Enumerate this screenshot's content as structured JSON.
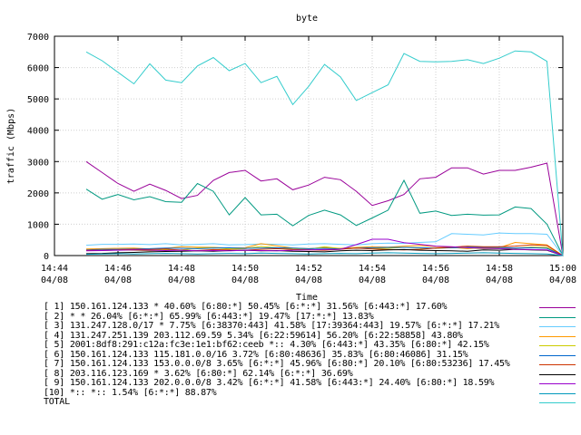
{
  "chart_data": {
    "type": "line",
    "title": "byte",
    "xlabel": "Time",
    "ylabel": "traffic (Mbps)",
    "ylim": [
      0,
      7000
    ],
    "yticks": [
      "0",
      "1000",
      "2000",
      "3000",
      "4000",
      "5000",
      "6000",
      "7000"
    ],
    "xlim": [
      "14:44",
      "15:00"
    ],
    "xticks": [
      {
        "time": "14:44",
        "date": "04/08"
      },
      {
        "time": "14:46",
        "date": "04/08"
      },
      {
        "time": "14:48",
        "date": "04/08"
      },
      {
        "time": "14:50",
        "date": "04/08"
      },
      {
        "time": "14:52",
        "date": "04/08"
      },
      {
        "time": "14:54",
        "date": "04/08"
      },
      {
        "time": "14:56",
        "date": "04/08"
      },
      {
        "time": "14:58",
        "date": "04/08"
      },
      {
        "time": "15:00",
        "date": "04/08"
      }
    ],
    "grid": true,
    "legend_position": "bottom",
    "x": [
      "14:45:00",
      "14:45:30",
      "14:46:00",
      "14:46:30",
      "14:47:00",
      "14:47:30",
      "14:48:00",
      "14:48:30",
      "14:49:00",
      "14:49:30",
      "14:50:00",
      "14:50:30",
      "14:51:00",
      "14:51:30",
      "14:52:00",
      "14:52:30",
      "14:53:00",
      "14:53:30",
      "14:54:00",
      "14:54:30",
      "14:55:00",
      "14:55:30",
      "14:56:00",
      "14:56:30",
      "14:57:00",
      "14:57:30",
      "14:58:00",
      "14:58:30",
      "14:59:00",
      "14:59:30",
      "15:00:00"
    ],
    "series": [
      {
        "name": "[ 1] 150.161.124.133 * 40.60% [6:80:*] 50.45% [6:*:*] 31.56% [6:443:*] 17.60%",
        "color": "#990099",
        "values": [
          3000,
          2650,
          2300,
          2050,
          2280,
          2080,
          1820,
          1920,
          2400,
          2650,
          2720,
          2380,
          2450,
          2100,
          2250,
          2500,
          2420,
          2050,
          1600,
          1750,
          1950,
          2450,
          2500,
          2800,
          2800,
          2600,
          2720,
          2720,
          2820,
          2950,
          0
        ]
      },
      {
        "name": "[ 2] * * 26.04% [6:*:*] 65.99% [6:443:*] 19.47% [17:*:*] 13.83%",
        "color": "#009980",
        "values": [
          2120,
          1800,
          1950,
          1780,
          1880,
          1720,
          1700,
          2300,
          2050,
          1300,
          1850,
          1300,
          1320,
          950,
          1280,
          1450,
          1300,
          960,
          1200,
          1450,
          2400,
          1350,
          1420,
          1280,
          1320,
          1290,
          1300,
          1550,
          1500,
          1000,
          0
        ]
      },
      {
        "name": "[ 3] 131.247.128.0/17 * 7.75% [6:38370:443] 41.58% [17:39364:443] 19.57% [6:*:*] 17.21%",
        "color": "#66ccff",
        "values": [
          330,
          360,
          360,
          370,
          350,
          380,
          340,
          360,
          380,
          340,
          350,
          370,
          360,
          340,
          370,
          380,
          360,
          340,
          380,
          400,
          390,
          420,
          440,
          700,
          680,
          660,
          720,
          700,
          700,
          680,
          0
        ]
      },
      {
        "name": "[ 4] 131.247.251.139 203.112.69.59 5.34% [6:22:59614] 56.20% [6:22:58858] 43.80%",
        "color": "#ff9900",
        "values": [
          210,
          220,
          230,
          240,
          210,
          230,
          280,
          270,
          260,
          240,
          250,
          380,
          310,
          240,
          220,
          250,
          230,
          260,
          280,
          270,
          300,
          320,
          290,
          260,
          220,
          250,
          250,
          420,
          380,
          340,
          0
        ]
      },
      {
        "name": "[ 5] 2001:8df8:291:c12a:fc3e:1e1:bf62:ceeb *:: 4.30% [6:443:*] 43.35% [6:80:*] 42.15%",
        "color": "#cccc00",
        "values": [
          160,
          160,
          180,
          170,
          150,
          180,
          180,
          240,
          250,
          210,
          220,
          290,
          250,
          210,
          200,
          280,
          220,
          240,
          220,
          230,
          260,
          240,
          230,
          250,
          240,
          220,
          220,
          240,
          270,
          260,
          0
        ]
      },
      {
        "name": "[ 6] 150.161.124.133 115.181.0.0/16 3.72% [6:80:48636] 35.83% [6:80:46086] 31.15%",
        "color": "#0066cc",
        "values": [
          180,
          200,
          200,
          210,
          220,
          240,
          230,
          220,
          240,
          250,
          230,
          240,
          250,
          240,
          220,
          230,
          210,
          240,
          250,
          260,
          260,
          250,
          240,
          250,
          270,
          270,
          260,
          240,
          250,
          230,
          0
        ]
      },
      {
        "name": "[ 7] 150.161.124.133 153.0.0.0/8 3.65% [6:*:*] 45.96% [6:80:*] 20.10% [6:80:53236] 17.45%",
        "color": "#cc3300",
        "values": [
          170,
          170,
          180,
          200,
          190,
          210,
          170,
          160,
          190,
          180,
          170,
          200,
          220,
          190,
          180,
          170,
          200,
          240,
          210,
          190,
          180,
          200,
          240,
          270,
          300,
          280,
          280,
          300,
          340,
          320,
          0
        ]
      },
      {
        "name": "[ 8] 203.116.123.169 * 3.62% [6:80:*] 62.14% [6:*:*] 36.69%",
        "color": "#000000",
        "values": [
          60,
          70,
          90,
          100,
          120,
          130,
          140,
          150,
          140,
          160,
          170,
          150,
          160,
          140,
          130,
          120,
          150,
          170,
          160,
          180,
          190,
          170,
          160,
          150,
          140,
          180,
          170,
          200,
          180,
          170,
          0
        ]
      },
      {
        "name": "[ 9] 150.161.124.133 202.0.0.0/8 3.42% [6:*:*] 41.58% [6:443:*] 24.40% [6:80:*] 18.59%",
        "color": "#9900cc",
        "values": [
          150,
          160,
          170,
          180,
          170,
          160,
          170,
          150,
          160,
          150,
          170,
          160,
          150,
          170,
          180,
          190,
          200,
          350,
          520,
          520,
          410,
          360,
          300,
          280,
          250,
          230,
          220,
          200,
          190,
          180,
          0
        ]
      },
      {
        "name": "[10] *:: *:: 1.54% [6:*:*] 88.87%",
        "color": "#0099bb",
        "values": [
          40,
          50,
          60,
          50,
          60,
          70,
          60,
          50,
          60,
          70,
          60,
          80,
          70,
          60,
          50,
          60,
          70,
          60,
          80,
          90,
          80,
          70,
          60,
          70,
          80,
          90,
          80,
          70,
          60,
          50,
          0
        ]
      },
      {
        "name": "TOTAL",
        "color": "#33cccc",
        "values": [
          6500,
          6220,
          5850,
          5480,
          6120,
          5600,
          5520,
          6050,
          6320,
          5900,
          6130,
          5520,
          5720,
          4820,
          5400,
          6100,
          5700,
          4950,
          5200,
          5450,
          6450,
          6200,
          6180,
          6200,
          6250,
          6130,
          6300,
          6530,
          6500,
          6200,
          0
        ]
      }
    ]
  }
}
